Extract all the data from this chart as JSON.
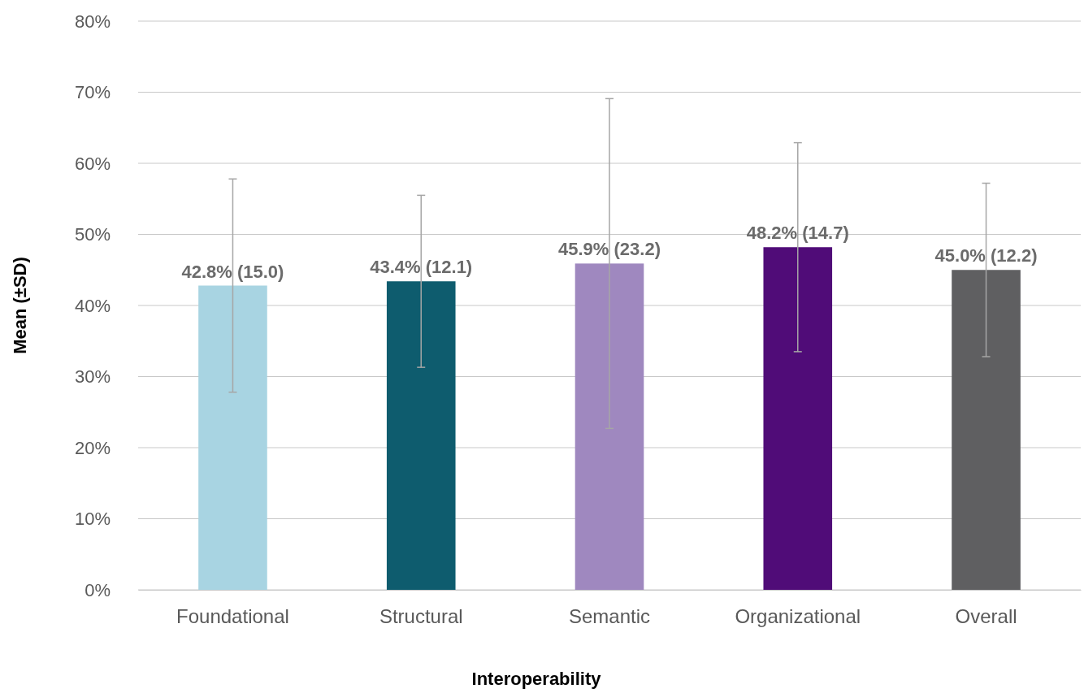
{
  "chart_data": {
    "type": "bar",
    "xlabel": "Interoperability",
    "ylabel": "Mean (±SD)",
    "categories": [
      "Foundational",
      "Structural",
      "Semantic",
      "Organizational",
      "Overall"
    ],
    "values": [
      42.8,
      43.4,
      45.9,
      48.2,
      45.0
    ],
    "errors": [
      15.0,
      12.1,
      23.2,
      14.7,
      12.2
    ],
    "colors": [
      "#a8d4e2",
      "#0e5c6e",
      "#9f88bf",
      "#500c78",
      "#5f5f61"
    ],
    "value_labels": [
      "42.8% (15.0)",
      "43.4% (12.1)",
      "45.9% (23.2)",
      "48.2% (14.7)",
      "45.0% (12.2)"
    ],
    "ylim": [
      0,
      80
    ],
    "yticks": [
      {
        "value": 0,
        "label": "0%"
      },
      {
        "value": 10,
        "label": "10%"
      },
      {
        "value": 20,
        "label": "20%"
      },
      {
        "value": 30,
        "label": "30%"
      },
      {
        "value": 40,
        "label": "40%"
      },
      {
        "value": 50,
        "label": "50%"
      },
      {
        "value": 60,
        "label": "60%"
      },
      {
        "value": 70,
        "label": "70%"
      },
      {
        "value": 80,
        "label": "80%"
      }
    ],
    "grid": "y"
  }
}
